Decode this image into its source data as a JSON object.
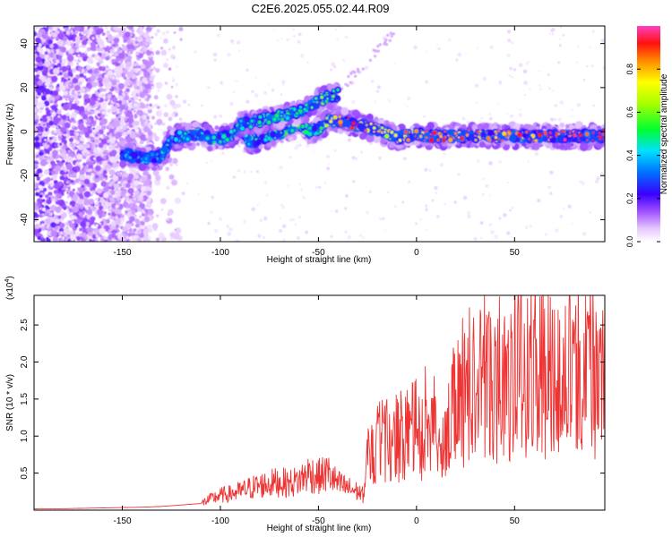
{
  "title": "C2E6.2025.055.02.44.R09",
  "chart_data": [
    {
      "type": "heatmap",
      "xlabel": "Height of straight line (km)",
      "ylabel": "Frequency (Hz)",
      "xlim": [
        -195,
        96
      ],
      "ylim": [
        -50,
        48
      ],
      "xticks": [
        -150,
        -100,
        -50,
        0,
        50
      ],
      "yticks": [
        -40,
        -20,
        0,
        20,
        40
      ],
      "colorbar": {
        "label": "Normalized spectral amplitude",
        "range": [
          0,
          1
        ],
        "ticks": [
          "0.0",
          "0.2",
          "0.4",
          "0.6",
          "0.8"
        ]
      },
      "ridge": {
        "x": [
          -150,
          -145,
          -140,
          -135,
          -130,
          -125,
          -120,
          -115,
          -110,
          -105,
          -100,
          -95,
          -90,
          -85,
          -80,
          -75,
          -70,
          -65,
          -60,
          -55,
          -50,
          -45,
          -40,
          -35,
          -30,
          -25,
          -20,
          -15,
          -10,
          -5,
          0,
          5,
          10,
          20,
          30,
          40,
          50,
          60,
          70,
          80,
          90,
          96
        ],
        "y": [
          -10,
          -11,
          -12,
          -12,
          -11,
          -3,
          -2,
          -2,
          -1,
          -3,
          -3,
          -2,
          2,
          -5,
          -3,
          -2,
          -1,
          1,
          4,
          0,
          1,
          5,
          5,
          4,
          3,
          2,
          1,
          -1,
          -3,
          -2,
          -1,
          -2,
          -2,
          -2,
          -2,
          -2,
          -2,
          -2,
          -2,
          -2,
          -2,
          -2
        ],
        "amplitude": [
          0.3,
          0.45,
          0.45,
          0.4,
          0.45,
          0.45,
          0.5,
          0.5,
          0.5,
          0.5,
          0.45,
          0.5,
          0.5,
          0.5,
          0.5,
          0.5,
          0.5,
          0.55,
          0.55,
          0.55,
          0.5,
          0.7,
          0.85,
          0.9,
          0.9,
          0.85,
          0.8,
          0.75,
          0.8,
          0.85,
          0.85,
          0.9,
          0.9,
          0.9,
          0.9,
          0.9,
          0.9,
          0.9,
          0.95,
          0.95,
          0.95,
          0.95
        ]
      },
      "upper_branch": {
        "x": [
          -90,
          -80,
          -70,
          -60,
          -55,
          -50,
          -45,
          -40
        ],
        "y": [
          3,
          5,
          7,
          9,
          11,
          14,
          16,
          17
        ],
        "amplitude": [
          0.45,
          0.5,
          0.5,
          0.5,
          0.55,
          0.6,
          0.6,
          0.55
        ]
      }
    },
    {
      "type": "line",
      "xlabel": "Height of straight line (km)",
      "ylabel": "SNR (10 * v/v)",
      "multiplier": "(x10",
      "multiplier_exp": "4",
      "xlim": [
        -195,
        96
      ],
      "ylim": [
        0,
        2.9
      ],
      "xticks": [
        -150,
        -100,
        -50,
        0,
        50
      ],
      "yticks": [
        0.5,
        1,
        1.5,
        2,
        2.5
      ],
      "ytick_labels": [
        "0.5",
        "1.0",
        "1.5",
        "2.0",
        "2.5"
      ],
      "color": "#ee3333",
      "series": [
        {
          "x": [
            -195,
            -180,
            -160,
            -140,
            -130,
            -120,
            -110,
            -105,
            -100,
            -95,
            -90,
            -85,
            -80,
            -75,
            -70,
            -65,
            -60,
            -55,
            -50,
            -45,
            -40,
            -35,
            -30,
            -27,
            -25,
            -20,
            -15,
            -10,
            -5,
            0,
            5,
            10,
            12,
            14,
            20,
            25,
            30,
            35,
            40,
            45,
            50,
            60,
            70,
            80,
            90,
            96
          ],
          "y": [
            0.02,
            0.02,
            0.03,
            0.04,
            0.05,
            0.07,
            0.09,
            0.15,
            0.2,
            0.22,
            0.25,
            0.3,
            0.33,
            0.36,
            0.38,
            0.36,
            0.4,
            0.5,
            0.45,
            0.5,
            0.35,
            0.3,
            0.25,
            0.2,
            0.7,
            0.85,
            0.95,
            1.0,
            1.05,
            1.1,
            1.15,
            1.3,
            0.5,
            0.9,
            1.5,
            1.6,
            1.7,
            1.8,
            1.75,
            1.85,
            1.9,
            1.95,
            1.9,
            1.95,
            1.9,
            1.95
          ]
        }
      ]
    }
  ]
}
